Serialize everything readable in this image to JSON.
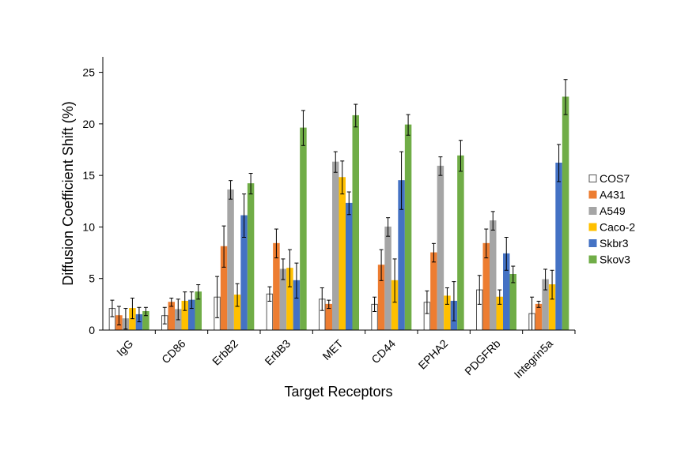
{
  "chart_data": {
    "type": "bar",
    "xlabel": "Target Receptors",
    "ylabel": "Diffusion Coefficient Shift (%)",
    "ylim": [
      0,
      26.5
    ],
    "yticks": [
      0,
      5,
      10,
      15,
      20,
      25
    ],
    "grid": false,
    "legend_position": "right",
    "categories": [
      "IgG",
      "CD86",
      "ErbB2",
      "ErbB3",
      "MET",
      "CD44",
      "EPHA2",
      "PDGFRb",
      "Integrin5a"
    ],
    "series": [
      {
        "name": "COS7",
        "color": "#ffffff",
        "stroke": "#555555",
        "values": [
          2.1,
          1.4,
          3.2,
          3.5,
          3.0,
          2.5,
          2.7,
          3.9,
          1.6
        ],
        "errors": [
          0.8,
          0.8,
          2.0,
          0.7,
          1.1,
          0.7,
          1.1,
          1.4,
          1.6
        ]
      },
      {
        "name": "A431",
        "color": "#ed7d31",
        "stroke": "#ed7d31",
        "values": [
          1.4,
          2.7,
          8.1,
          8.4,
          2.5,
          6.3,
          7.5,
          8.4,
          2.5
        ],
        "errors": [
          0.9,
          0.4,
          2.0,
          1.4,
          0.4,
          1.5,
          0.9,
          1.4,
          0.3
        ]
      },
      {
        "name": "A549",
        "color": "#a5a5a5",
        "stroke": "#a5a5a5",
        "values": [
          1.1,
          2.0,
          13.6,
          5.9,
          16.3,
          10.0,
          15.9,
          10.6,
          4.9
        ],
        "errors": [
          1.0,
          1.0,
          0.9,
          1.0,
          1.0,
          0.9,
          0.9,
          0.9,
          1.0
        ]
      },
      {
        "name": "Caco-2",
        "color": "#ffc000",
        "stroke": "#ffc000",
        "values": [
          2.1,
          2.8,
          3.4,
          6.0,
          14.8,
          4.8,
          3.3,
          3.2,
          4.4
        ],
        "errors": [
          1.0,
          0.9,
          1.1,
          1.8,
          1.6,
          2.1,
          0.8,
          0.7,
          1.4
        ]
      },
      {
        "name": "Skbr3",
        "color": "#4472c4",
        "stroke": "#4472c4",
        "values": [
          1.5,
          2.9,
          11.1,
          4.8,
          12.3,
          14.5,
          2.8,
          7.4,
          16.2
        ],
        "errors": [
          0.7,
          0.8,
          2.1,
          1.7,
          1.1,
          2.8,
          1.9,
          1.6,
          1.8
        ]
      },
      {
        "name": "Skov3",
        "color": "#70ad47",
        "stroke": "#70ad47",
        "values": [
          1.8,
          3.7,
          14.2,
          19.6,
          20.8,
          19.9,
          16.9,
          5.4,
          22.6
        ],
        "errors": [
          0.4,
          0.7,
          1.0,
          1.7,
          1.1,
          1.0,
          1.5,
          0.8,
          1.7
        ]
      }
    ]
  }
}
